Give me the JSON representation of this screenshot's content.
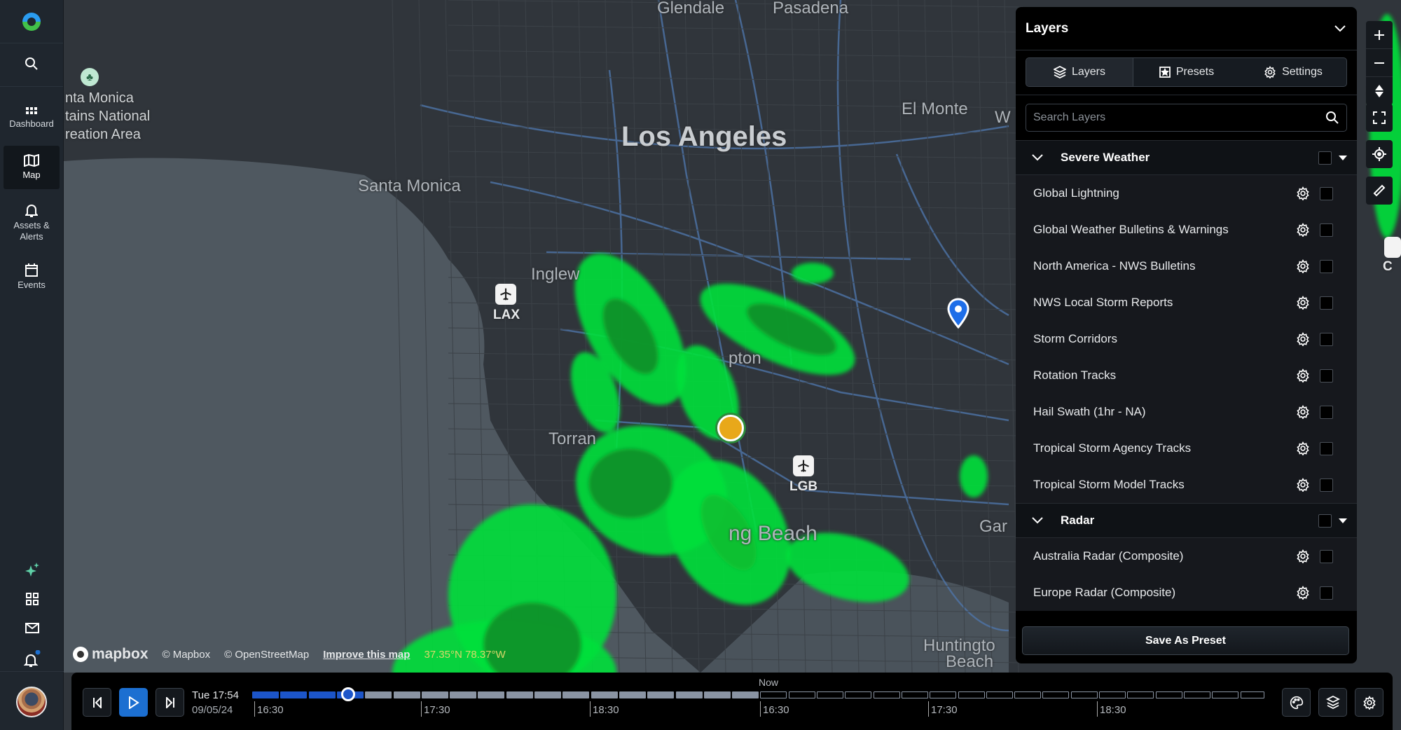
{
  "sidebar": {
    "items": [
      {
        "label": "Dashboard",
        "icon": "grid-dots-icon"
      },
      {
        "label": "Map",
        "icon": "map-icon",
        "active": true
      },
      {
        "label": "Assets & Alerts",
        "icon": "bell-icon"
      },
      {
        "label": "Events",
        "icon": "calendar-icon"
      }
    ],
    "bottom_icons": [
      "sparkle-icon",
      "apps-grid-icon",
      "mail-icon",
      "notification-bell-icon"
    ],
    "accent": "#1c6fd1"
  },
  "map": {
    "labels": {
      "glendale": "Glendale",
      "pasadena": "Pasadena",
      "los_angeles": "Los Angeles",
      "el_monte": "El Monte",
      "santa_monica": "Santa Monica",
      "mountains_1": "nta Monica",
      "mountains_2": "tains National",
      "mountains_3": "reation Area",
      "inglewood": "Inglew",
      "compton": "pton",
      "torrance": "Torran",
      "long_beach": "ng Beach",
      "garden": "Gar",
      "huntington_1": "Huntingto",
      "huntington_2": "Beach",
      "w": "W",
      "c": "C"
    },
    "airports": [
      {
        "code": "LAX"
      },
      {
        "code": "LGB"
      }
    ],
    "radar_colors": [
      "#00e03a",
      "#0bbf32",
      "#0a8f28",
      "#18ff6a"
    ],
    "attribution": {
      "brand": "mapbox",
      "mapbox": "© Mapbox",
      "osm": "© OpenStreetMap",
      "improve": "Improve this map",
      "coords": "37.35°N 78.37°W"
    }
  },
  "layers_panel": {
    "title": "Layers",
    "tabs": [
      {
        "label": "Layers",
        "active": true
      },
      {
        "label": "Presets"
      },
      {
        "label": "Settings"
      }
    ],
    "search_placeholder": "Search Layers",
    "groups": [
      {
        "name": "Severe Weather",
        "items": [
          "Global Lightning",
          "Global Weather Bulletins & Warnings",
          "North America - NWS Bulletins",
          "NWS Local Storm Reports",
          "Storm Corridors",
          "Rotation Tracks",
          "Hail Swath (1hr - NA)",
          "Tropical Storm Agency Tracks",
          "Tropical Storm Model Tracks"
        ]
      },
      {
        "name": "Radar",
        "items": [
          "Australia Radar (Composite)",
          "Europe Radar (Composite)"
        ]
      }
    ],
    "save_label": "Save As Preset"
  },
  "timeline": {
    "day_time": "Tue 17:54",
    "date": "09/05/24",
    "now_label": "Now",
    "ticks": [
      "16:30",
      "17:30",
      "18:30",
      "16:30",
      "17:30",
      "18:30"
    ],
    "progress_color": "#1c55c9"
  }
}
